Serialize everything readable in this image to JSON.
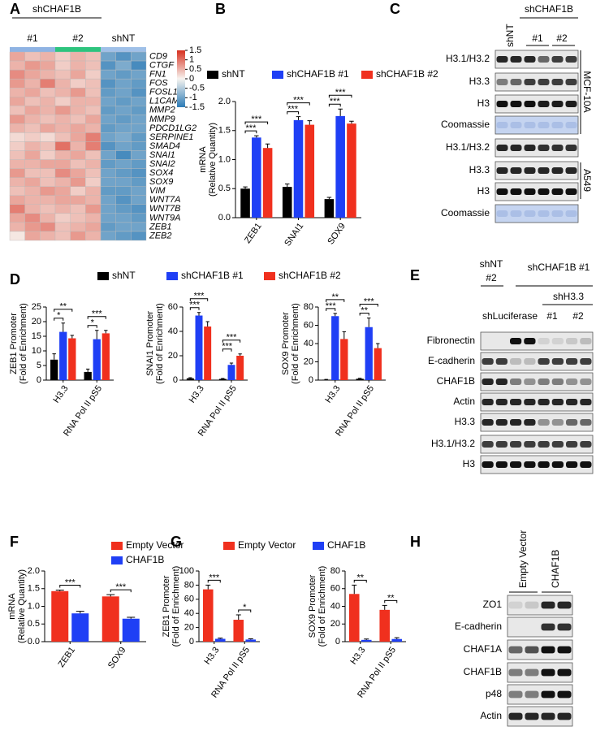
{
  "panel_labels": [
    "A",
    "B",
    "C",
    "D",
    "E",
    "F",
    "G",
    "H"
  ],
  "heatmap": {
    "group_title": "shCHAF1B",
    "groups": [
      "#1",
      "#2",
      "shNT"
    ],
    "group_colors": [
      "#8fb3e3",
      "#2ec47e",
      "#9fc0e8"
    ],
    "colormap": [
      "#2c7bb6",
      "#f7f4f0",
      "#d7301f"
    ],
    "zlim": [
      -1.5,
      1.5
    ],
    "zticks": [
      1.5,
      1,
      0.5,
      0,
      -0.5,
      -1,
      -1.5
    ],
    "genes": [
      "CD9",
      "CTGF",
      "FN1",
      "FOS",
      "FOSL1",
      "L1CAM",
      "MMP2",
      "MMP9",
      "PDCD1LG2",
      "SERPINE1",
      "SMAD4",
      "SNAI1",
      "SNAI2",
      "SOX4",
      "SOX9",
      "VIM",
      "WNT7A",
      "WNT7B",
      "WNT9A",
      "ZEB1",
      "ZEB2"
    ],
    "values": [
      [
        0.6,
        0.4,
        0.5,
        0.3,
        0.5,
        0.4,
        -1,
        -1.2,
        -1
      ],
      [
        0.5,
        0.7,
        0.6,
        0.3,
        0.5,
        0.4,
        -1.2,
        -0.9,
        -1.3
      ],
      [
        0.8,
        0.6,
        0.5,
        0.4,
        0.6,
        0.3,
        -1,
        -1.1,
        -1
      ],
      [
        0.7,
        0.5,
        0.9,
        0.5,
        0.3,
        0.4,
        -1.2,
        -1,
        -1.1
      ],
      [
        0.5,
        0.6,
        0.4,
        0.5,
        0.7,
        0.4,
        -1.1,
        -1,
        -1.2
      ],
      [
        0.6,
        0.4,
        0.5,
        0.3,
        0.5,
        0.5,
        -1,
        -1.1,
        -1
      ],
      [
        0.4,
        0.6,
        0.5,
        0.7,
        0.5,
        0.4,
        -1.1,
        -1,
        -1.1
      ],
      [
        0.7,
        0.5,
        0.4,
        0.5,
        0.4,
        0.6,
        -1,
        -1.1,
        -1
      ],
      [
        0.5,
        0.4,
        0.6,
        0.5,
        0.6,
        0.5,
        -1.1,
        -1,
        -1
      ],
      [
        0.2,
        0.3,
        0.2,
        0.4,
        0.6,
        0.9,
        -1,
        -0.9,
        -1.1
      ],
      [
        0.3,
        0.5,
        0.4,
        1.0,
        0.5,
        0.9,
        -1.2,
        -1,
        -1.1
      ],
      [
        0.4,
        0.6,
        0.3,
        0.5,
        0.6,
        0.4,
        -1,
        -1.3,
        -1
      ],
      [
        0.5,
        0.5,
        0.6,
        0.6,
        0.4,
        0.5,
        -1.1,
        -1,
        -1.1
      ],
      [
        0.7,
        0.4,
        0.4,
        0.8,
        0.6,
        0.4,
        -1,
        -1.1,
        -1.2
      ],
      [
        0.5,
        0.6,
        0.4,
        0.5,
        0.7,
        0.3,
        -1,
        -1,
        -1.1
      ],
      [
        0.4,
        0.5,
        0.7,
        0.6,
        0.3,
        0.5,
        -1.1,
        -1.1,
        -1
      ],
      [
        0.6,
        0.5,
        0.5,
        0.6,
        0.6,
        0.5,
        -1,
        -1.2,
        -1
      ],
      [
        0.9,
        0.5,
        0.4,
        0.5,
        0.4,
        0.7,
        -1,
        -1.1,
        -1.2
      ],
      [
        0.6,
        0.8,
        0.5,
        0.3,
        0.4,
        0.5,
        -1,
        -1,
        -1.1
      ],
      [
        0.5,
        0.7,
        0.8,
        0.4,
        0.5,
        0.6,
        -1.1,
        -1,
        -1
      ],
      [
        0.1,
        0.6,
        0.5,
        0.4,
        0.7,
        0.5,
        -1,
        -1.1,
        -1.2
      ]
    ]
  },
  "chart_data": [
    {
      "type": "bar",
      "ylabel": [
        "mRNA",
        "(Relative Quantity)"
      ],
      "categories": [
        "ZEB1",
        "SNAI1",
        "SOX9"
      ],
      "series": [
        {
          "name": "shNT",
          "color": "#000000",
          "values": [
            0.5,
            0.53,
            0.32
          ],
          "errors": [
            0.03,
            0.05,
            0.03
          ]
        },
        {
          "name": "shCHAF1B #1",
          "color": "#1f3ff5",
          "values": [
            1.38,
            1.68,
            1.75
          ],
          "errors": [
            0.03,
            0.06,
            0.12
          ]
        },
        {
          "name": "shCHAF1B #2",
          "color": "#f0301e",
          "values": [
            1.2,
            1.6,
            1.62
          ],
          "errors": [
            0.07,
            0.07,
            0.04
          ]
        }
      ],
      "ylim": [
        0,
        2
      ],
      "yticks": [
        {
          "value": 0,
          "label": "0.0"
        },
        0.5,
        {
          "value": 1,
          "label": "1.0"
        },
        1.5,
        {
          "value": 2,
          "label": "2.0"
        }
      ],
      "annotations": [
        "***",
        "***",
        "***",
        "***",
        "***",
        "***"
      ]
    },
    {
      "type": "bar",
      "ylabel": [
        "ZEB1 Promoter",
        "(Fold of Enrichment)"
      ],
      "categories": [
        "H3.3",
        "RNA Pol II pS5"
      ],
      "series": [
        {
          "name": "shNT",
          "color": "#000000",
          "values": [
            7,
            2.8
          ],
          "errors": [
            2,
            1
          ]
        },
        {
          "name": "shCHAF1B #1",
          "color": "#1f3ff5",
          "values": [
            16.5,
            14
          ],
          "errors": [
            3,
            3
          ]
        },
        {
          "name": "shCHAF1B #2",
          "color": "#f0301e",
          "values": [
            14.3,
            16
          ],
          "errors": [
            1,
            1
          ]
        }
      ],
      "ylim": [
        0,
        25
      ],
      "yticks": [
        0,
        5,
        10,
        15,
        20,
        25
      ],
      "annotations": [
        "*",
        "**",
        "*",
        "***"
      ]
    },
    {
      "type": "bar",
      "ylabel": [
        "SNAI1 Promoter",
        "(Fold of Enrichment)"
      ],
      "categories": [
        "H3.3",
        "RNA Pol II pS5"
      ],
      "series": [
        {
          "color": "#000000",
          "values": [
            1.5,
            1
          ],
          "errors": [
            0.5,
            0.3
          ]
        },
        {
          "color": "#1f3ff5",
          "values": [
            53,
            12.5
          ],
          "errors": [
            2.5,
            1.5
          ]
        },
        {
          "color": "#f0301e",
          "values": [
            44,
            20
          ],
          "errors": [
            4,
            1.5
          ]
        }
      ],
      "ylim": [
        0,
        60
      ],
      "yticks": [
        0,
        20,
        40,
        60
      ],
      "annotations": [
        "***",
        "***",
        "***",
        "***"
      ]
    },
    {
      "type": "bar",
      "ylabel": [
        "SOX9 Promoter",
        "(Fold of Enrichment)"
      ],
      "categories": [
        "H3.3",
        "RNA Pol II pS5"
      ],
      "series": [
        {
          "color": "#000000",
          "values": [
            0.5,
            1.5
          ],
          "errors": [
            0.3,
            0.5
          ]
        },
        {
          "color": "#1f3ff5",
          "values": [
            70,
            58
          ],
          "errors": [
            3,
            10
          ]
        },
        {
          "color": "#f0301e",
          "values": [
            45,
            35
          ],
          "errors": [
            8,
            5
          ]
        }
      ],
      "ylim": [
        0,
        80
      ],
      "yticks": [
        0,
        20,
        40,
        60,
        80
      ],
      "annotations": [
        "***",
        "**",
        "**",
        "***"
      ]
    },
    {
      "type": "bar",
      "ylabel": [
        "mRNA",
        "(Relative Quantity)"
      ],
      "categories": [
        "ZEB1",
        "SOX9"
      ],
      "series": [
        {
          "name": "Empty Vector",
          "color": "#f0301e",
          "values": [
            1.43,
            1.28
          ],
          "errors": [
            0.03,
            0.05
          ]
        },
        {
          "name": "CHAF1B",
          "color": "#1f3ff5",
          "values": [
            0.8,
            0.65
          ],
          "errors": [
            0.06,
            0.04
          ]
        }
      ],
      "ylim": [
        0,
        2
      ],
      "yticks": [
        {
          "value": 0,
          "label": "0.0"
        },
        0.5,
        {
          "value": 1,
          "label": "1.0"
        },
        1.5,
        {
          "value": 2,
          "label": "2.0"
        }
      ],
      "annotations": [
        "***",
        "***"
      ]
    },
    {
      "type": "bar",
      "ylabel": [
        "ZEB1 Promoter",
        "(Fold of Enrichment)"
      ],
      "categories": [
        "H3.3",
        "RNA Pol II pS5"
      ],
      "series": [
        {
          "name": "Empty Vector",
          "color": "#f0301e",
          "values": [
            74,
            31
          ],
          "errors": [
            6,
            7
          ]
        },
        {
          "name": "CHAF1B",
          "color": "#1f3ff5",
          "values": [
            4,
            3
          ],
          "errors": [
            1,
            1
          ]
        }
      ],
      "ylim": [
        0,
        100
      ],
      "yticks": [
        0,
        20,
        40,
        60,
        80,
        100
      ],
      "annotations": [
        "***",
        "*"
      ]
    },
    {
      "type": "bar",
      "ylabel": [
        "SOX9 Promoter",
        "(Fold of Enrichment)"
      ],
      "categories": [
        "H3.3",
        "RNA Pol II pS5"
      ],
      "series": [
        {
          "color": "#f0301e",
          "values": [
            54,
            36
          ],
          "errors": [
            10,
            5
          ]
        },
        {
          "color": "#1f3ff5",
          "values": [
            2,
            3
          ],
          "errors": [
            1,
            1.5
          ]
        }
      ],
      "ylim": [
        0,
        80
      ],
      "yticks": [
        0,
        20,
        40,
        60,
        80
      ],
      "annotations": [
        "**",
        "**"
      ]
    }
  ],
  "blots": {
    "C": {
      "header": [
        "shNT",
        "shCHAF1B",
        "#1",
        "#2"
      ],
      "rows": [
        "H3.1/H3.2",
        "H3.3",
        "H3",
        "Coomassie",
        "H3.1/H3.2",
        "H3.3",
        "H3",
        "Coomassie"
      ],
      "cell_lines": [
        "MCF-10A",
        "A549"
      ]
    },
    "E": {
      "header": [
        "shNT",
        "#2",
        "shCHAF1B #1",
        "shH3.3",
        "shLuciferase",
        "#1",
        "#2"
      ],
      "rows": [
        "Fibronectin",
        "E-cadherin",
        "CHAF1B",
        "Actin",
        "H3.3",
        "H3.1/H3.2",
        "H3"
      ]
    },
    "H": {
      "header": [
        "Empty Vector",
        "CHAF1B"
      ],
      "rows": [
        "ZO1",
        "E-cadherin",
        "CHAF1A",
        "CHAF1B",
        "p48",
        "Actin"
      ]
    }
  }
}
